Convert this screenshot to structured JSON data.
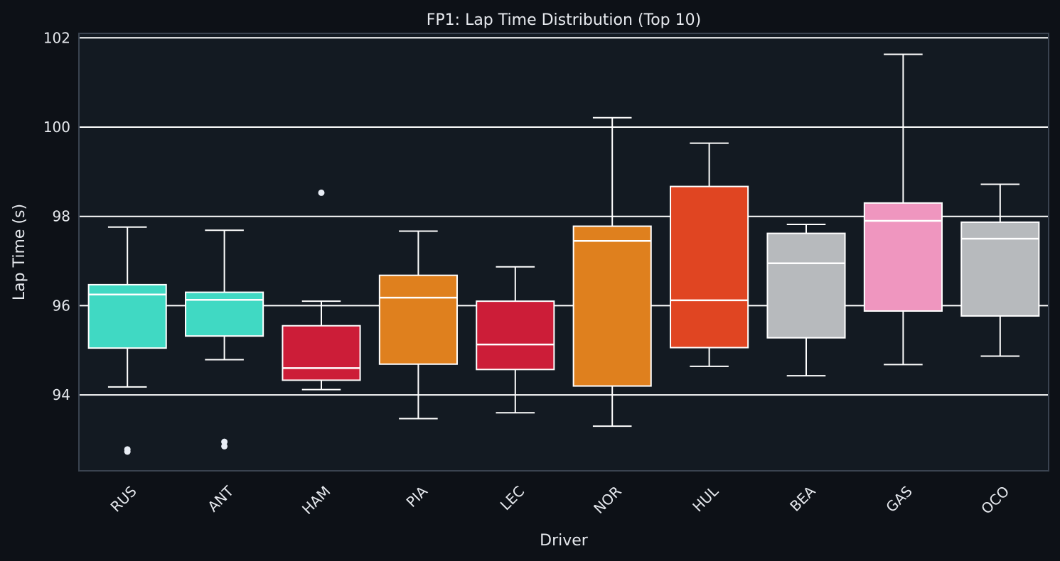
{
  "colors": {
    "page_bg": "#0d1117",
    "plot_bg": "#131a22",
    "grid": "#ffffff",
    "frame": "#3a4350",
    "text": "#e6e9ee",
    "whisker": "#ffffff"
  },
  "chart_data": {
    "type": "box",
    "title": "FP1: Lap Time Distribution (Top 10)",
    "xlabel": "Driver",
    "ylabel": "Lap Time (s)",
    "ylim": [
      92.3,
      102.1
    ],
    "yticks": [
      94,
      96,
      98,
      100,
      102
    ],
    "grid": "horizontal",
    "categories": [
      "RUS",
      "ANT",
      "HAM",
      "PIA",
      "LEC",
      "NOR",
      "HUL",
      "BEA",
      "GAS",
      "OCO"
    ],
    "boxes": [
      {
        "driver": "RUS",
        "color": "#40d9c3",
        "whisker_low": 94.18,
        "q1": 95.05,
        "median": 96.25,
        "q3": 96.47,
        "whisker_high": 97.76,
        "outliers": [
          92.78,
          92.73
        ]
      },
      {
        "driver": "ANT",
        "color": "#40d9c3",
        "whisker_low": 94.79,
        "q1": 95.32,
        "median": 96.13,
        "q3": 96.3,
        "whisker_high": 97.69,
        "outliers": [
          92.95,
          92.85
        ]
      },
      {
        "driver": "HAM",
        "color": "#cc1d38",
        "whisker_low": 94.12,
        "q1": 94.33,
        "median": 94.6,
        "q3": 95.55,
        "whisker_high": 96.1,
        "outliers": [
          98.53
        ]
      },
      {
        "driver": "PIA",
        "color": "#df801e",
        "whisker_low": 93.47,
        "q1": 94.69,
        "median": 96.18,
        "q3": 96.68,
        "whisker_high": 97.67,
        "outliers": []
      },
      {
        "driver": "LEC",
        "color": "#cc1d38",
        "whisker_low": 93.6,
        "q1": 94.57,
        "median": 95.13,
        "q3": 96.1,
        "whisker_high": 96.87,
        "outliers": []
      },
      {
        "driver": "NOR",
        "color": "#df801e",
        "whisker_low": 93.3,
        "q1": 94.2,
        "median": 97.45,
        "q3": 97.78,
        "whisker_high": 100.21,
        "outliers": []
      },
      {
        "driver": "HUL",
        "color": "#e04522",
        "whisker_low": 94.64,
        "q1": 95.06,
        "median": 96.12,
        "q3": 98.67,
        "whisker_high": 99.64,
        "outliers": []
      },
      {
        "driver": "BEA",
        "color": "#b7babd",
        "whisker_low": 94.43,
        "q1": 95.28,
        "median": 96.95,
        "q3": 97.62,
        "whisker_high": 97.82,
        "outliers": []
      },
      {
        "driver": "GAS",
        "color": "#ef96bf",
        "whisker_low": 94.68,
        "q1": 95.88,
        "median": 97.9,
        "q3": 98.3,
        "whisker_high": 101.63,
        "outliers": []
      },
      {
        "driver": "OCO",
        "color": "#b7babd",
        "whisker_low": 94.87,
        "q1": 95.77,
        "median": 97.5,
        "q3": 97.87,
        "whisker_high": 98.72,
        "outliers": []
      }
    ]
  }
}
